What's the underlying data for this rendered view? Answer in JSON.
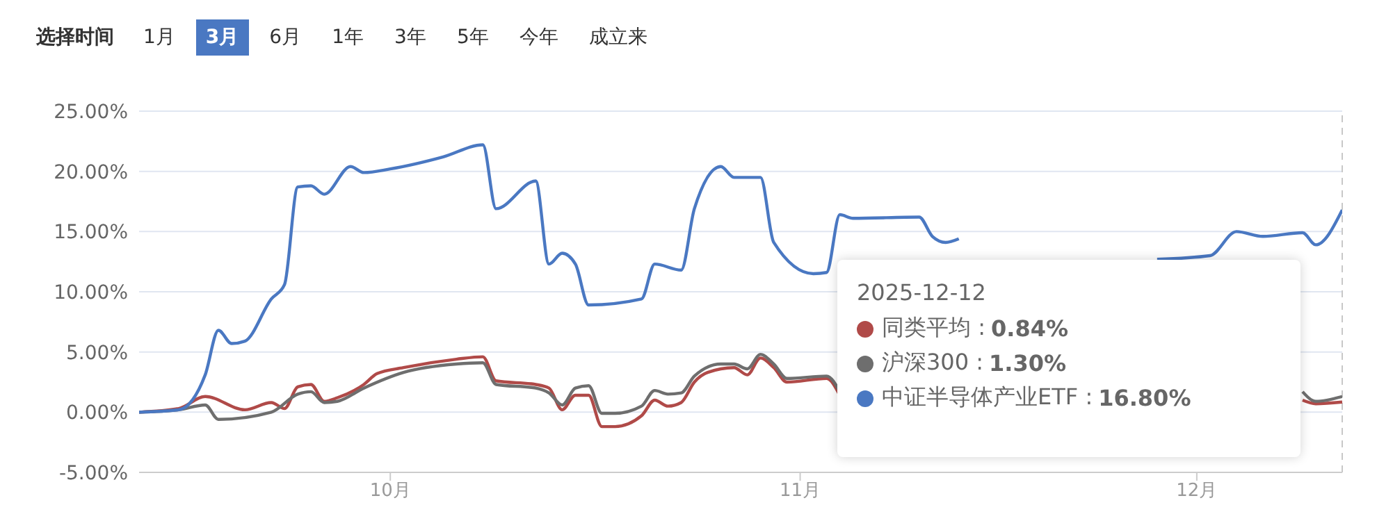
{
  "chart_data": {
    "type": "line",
    "annotations": [
      "选择时间",
      "1月",
      "3月",
      "6月",
      "1年",
      "3年",
      "5年",
      "今年",
      "成立来",
      "2025-12-12",
      "0.84%",
      "1.30%",
      "16.80%",
      ":"
    ],
    "series": [
      {
        "name": "同类平均",
        "color": "#b04a48",
        "x": [
          "2025-09-12",
          "2025-09-15",
          "2025-09-17",
          "2025-09-20",
          "2025-09-22",
          "2025-09-23",
          "2025-09-24",
          "2025-09-25",
          "2025-09-26",
          "2025-09-27",
          "2025-09-29",
          "2025-09-30",
          "2025-10-02",
          "2025-10-06",
          "2025-10-08",
          "2025-10-09",
          "2025-10-12",
          "2025-10-13",
          "2025-10-14",
          "2025-10-15",
          "2025-10-16",
          "2025-10-17",
          "2025-10-18",
          "2025-10-20",
          "2025-10-21",
          "2025-10-22",
          "2025-10-23",
          "2025-10-24",
          "2025-10-25",
          "2025-10-27",
          "2025-10-28",
          "2025-10-29",
          "2025-10-30",
          "2025-10-31",
          "2025-11-03",
          "2025-11-04",
          "2025-11-05",
          "2025-12-09",
          "2025-12-10",
          "2025-12-12"
        ],
        "values": [
          0,
          0.3,
          1.3,
          0.2,
          0.8,
          0.3,
          2.1,
          2.3,
          0.9,
          1.2,
          2.3,
          3.2,
          3.7,
          4.4,
          4.6,
          2.6,
          2.3,
          2.0,
          0.2,
          1.4,
          1.4,
          -1.2,
          -1.2,
          -0.3,
          1.0,
          0.5,
          0.8,
          2.5,
          3.3,
          3.7,
          3.1,
          4.5,
          3.7,
          2.5,
          2.8,
          1.4,
          null,
          1.0,
          0.7,
          0.84
        ]
      },
      {
        "name": "沪深300",
        "color": "#6e6e6e",
        "x": [
          "2025-09-12",
          "2025-09-15",
          "2025-09-17",
          "2025-09-18",
          "2025-09-22",
          "2025-09-24",
          "2025-09-25",
          "2025-09-26",
          "2025-09-27",
          "2025-09-29",
          "2025-10-02",
          "2025-10-06",
          "2025-10-08",
          "2025-10-09",
          "2025-10-12",
          "2025-10-13",
          "2025-10-14",
          "2025-10-15",
          "2025-10-16",
          "2025-10-17",
          "2025-10-18",
          "2025-10-20",
          "2025-10-21",
          "2025-10-22",
          "2025-10-23",
          "2025-10-24",
          "2025-10-26",
          "2025-10-27",
          "2025-10-28",
          "2025-10-29",
          "2025-10-30",
          "2025-10-31",
          "2025-11-03",
          "2025-11-04",
          "2025-11-05",
          "2025-12-09",
          "2025-12-10",
          "2025-12-12"
        ],
        "values": [
          0,
          0.2,
          0.6,
          -0.6,
          0,
          1.5,
          1.7,
          0.8,
          0.9,
          2.0,
          3.3,
          4.0,
          4.1,
          2.3,
          2.0,
          1.6,
          0.6,
          2.0,
          2.2,
          -0.1,
          -0.1,
          0.5,
          1.8,
          1.5,
          1.6,
          3.0,
          4.0,
          4.0,
          3.6,
          4.8,
          4.0,
          2.8,
          3.0,
          1.7,
          null,
          1.7,
          0.9,
          1.3
        ]
      },
      {
        "name": "中证半导体产业ETF",
        "color": "#4a78c2",
        "x": [
          "2025-09-12",
          "2025-09-15",
          "2025-09-17",
          "2025-09-18",
          "2025-09-19",
          "2025-09-20",
          "2025-09-22",
          "2025-09-23",
          "2025-09-24",
          "2025-09-25",
          "2025-09-26",
          "2025-09-28",
          "2025-09-29",
          "2025-10-01",
          "2025-10-05",
          "2025-10-08",
          "2025-10-09",
          "2025-10-12",
          "2025-10-13",
          "2025-10-14",
          "2025-10-15",
          "2025-10-16",
          "2025-10-20",
          "2025-10-21",
          "2025-10-23",
          "2025-10-24",
          "2025-10-26",
          "2025-10-27",
          "2025-10-29",
          "2025-10-30",
          "2025-11-02",
          "2025-11-03",
          "2025-11-04",
          "2025-11-05",
          "2025-11-10",
          "2025-11-11",
          "2025-11-12",
          "2025-11-13",
          "2025-11-14",
          "2025-11-28",
          "2025-12-02",
          "2025-12-04",
          "2025-12-06",
          "2025-12-09",
          "2025-12-10",
          "2025-12-12"
        ],
        "values": [
          0,
          0.2,
          3.1,
          6.8,
          5.7,
          5.9,
          9.4,
          10.6,
          18.7,
          18.8,
          18.1,
          20.4,
          19.9,
          20.2,
          21.2,
          22.2,
          16.9,
          19.2,
          12.3,
          13.2,
          12.3,
          8.9,
          9.4,
          12.3,
          11.8,
          16.9,
          20.4,
          19.5,
          19.5,
          14.1,
          11.5,
          11.6,
          16.4,
          16.1,
          16.2,
          14.6,
          14.1,
          14.4,
          null,
          12.7,
          13.0,
          15.0,
          14.6,
          14.9,
          13.9,
          16.8
        ]
      }
    ],
    "xlim": [
      "2025-09-12",
      "2025-12-12"
    ],
    "xticks": [
      {
        "value": "2025-10-01",
        "label": "10月"
      },
      {
        "value": "2025-11-01",
        "label": "11月"
      },
      {
        "value": "2025-12-01",
        "label": "12月"
      }
    ],
    "ylim": [
      -5,
      25
    ],
    "yticks": [
      {
        "value": -5,
        "label": "-5.00%"
      },
      {
        "value": 0,
        "label": "0.00%"
      },
      {
        "value": 5,
        "label": "5.00%"
      },
      {
        "value": 10,
        "label": "10.00%"
      },
      {
        "value": 15,
        "label": "15.00%"
      },
      {
        "value": 20,
        "label": "20.00%"
      },
      {
        "value": 25,
        "label": "25.00%"
      }
    ],
    "ref_lines": [
      {
        "axis": "x",
        "value": "2025-12-12",
        "label": null,
        "color": "#c8c8c8",
        "line_style": "dashed"
      }
    ],
    "grid": "y",
    "legend": "bottom right",
    "marker": "none",
    "line_style": "solid"
  }
}
